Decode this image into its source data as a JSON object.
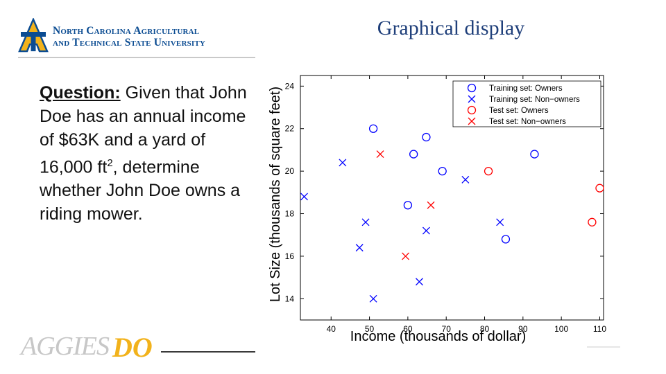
{
  "header": {
    "university_line1": "North Carolina Agricultural",
    "university_line2": "and Technical State University",
    "logo_letters": "A&T",
    "title": "Graphical display"
  },
  "question": {
    "label": "Question:",
    "text_part1": " Given that John Doe has an annual income of $63K and a yard of 16,000 ft",
    "superscript": "2",
    "text_part2": ", determine whether John Doe owns a riding mower."
  },
  "footer": {
    "brand_word": "AGGIES",
    "brand_do": "DO"
  },
  "colors": {
    "blue": "#0000ff",
    "red": "#ff0000",
    "brand_navy": "#0b4c92",
    "brand_gold": "#f2b21b",
    "title": "#1f3f7a"
  },
  "chart_data": {
    "type": "scatter",
    "xlabel": "Income (thousands of dollar)",
    "ylabel": "Lot Size (thousands of square feet)",
    "xlim": [
      32,
      111
    ],
    "ylim": [
      13,
      24.5
    ],
    "x_ticks": [
      "40",
      "50",
      "60",
      "70",
      "80",
      "90",
      "100",
      "110"
    ],
    "y_ticks": [
      "14",
      "16",
      "18",
      "20",
      "22",
      "24"
    ],
    "legend_position": "top-right",
    "series": [
      {
        "name": "Training set: Owners",
        "marker": "circle",
        "color": "#0000ff",
        "points": [
          [
            51,
            22
          ],
          [
            64.8,
            21.6
          ],
          [
            61.5,
            20.8
          ],
          [
            93,
            20.8
          ],
          [
            69,
            20
          ],
          [
            60,
            18.4
          ],
          [
            85.5,
            16.8
          ]
        ]
      },
      {
        "name": "Training set: Non−owners",
        "marker": "x",
        "color": "#0000ff",
        "points": [
          [
            43,
            20.4
          ],
          [
            33,
            18.8
          ],
          [
            75,
            19.6
          ],
          [
            49,
            17.6
          ],
          [
            84,
            17.6
          ],
          [
            64.8,
            17.2
          ],
          [
            47.4,
            16.4
          ],
          [
            63,
            14.8
          ],
          [
            51,
            14
          ]
        ]
      },
      {
        "name": "Test set: Owners",
        "marker": "circle",
        "color": "#ff0000",
        "points": [
          [
            81,
            20
          ],
          [
            110,
            19.2
          ],
          [
            108,
            17.6
          ]
        ]
      },
      {
        "name": "Test set: Non−owners",
        "marker": "x",
        "color": "#ff0000",
        "points": [
          [
            52.8,
            20.8
          ],
          [
            66,
            18.4
          ],
          [
            59.4,
            16
          ]
        ]
      }
    ]
  }
}
